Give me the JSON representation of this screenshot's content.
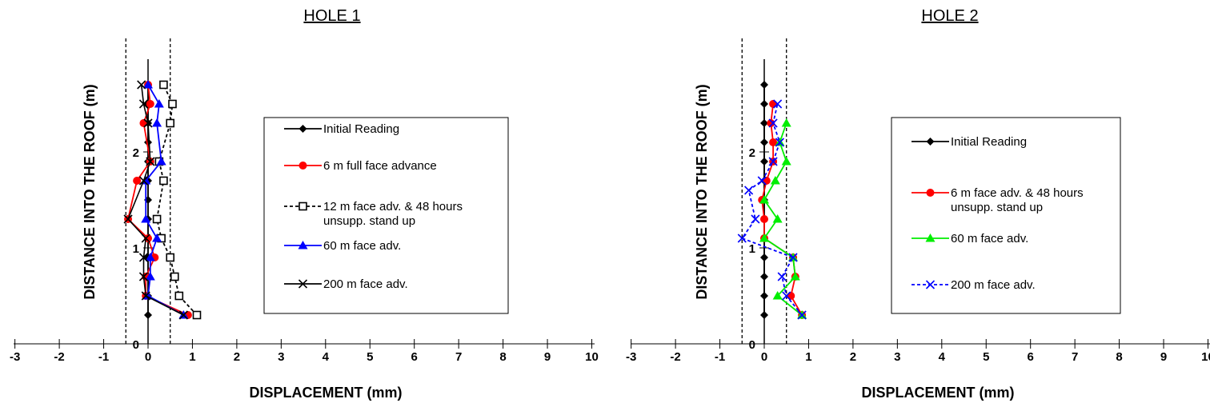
{
  "chart_data": [
    {
      "type": "line",
      "title": "HOLE 1",
      "xlabel": "DISPLACEMENT (mm)",
      "ylabel": "DISTANCE INTO THE ROOF (m)",
      "xlim": [
        -3,
        10
      ],
      "ylim": [
        0,
        2.8
      ],
      "x_ticks": [
        "-3",
        "-2",
        "-1",
        "0",
        "1",
        "2",
        "3",
        "4",
        "5",
        "6",
        "7",
        "8",
        "9",
        "10"
      ],
      "y_ticks": [
        "0",
        "1",
        "2"
      ],
      "reference_lines_x": [
        -0.5,
        0.5
      ],
      "legend_placement": "right",
      "series": [
        {
          "name": "Initial Reading",
          "color": "#000000",
          "marker": "diamond",
          "dash": "solid",
          "points": [
            [
              0,
              0.3
            ],
            [
              0,
              0.5
            ],
            [
              0,
              0.7
            ],
            [
              0,
              0.9
            ],
            [
              0,
              1.1
            ],
            [
              0,
              1.3
            ],
            [
              0,
              1.5
            ],
            [
              0,
              1.7
            ],
            [
              0,
              1.9
            ],
            [
              0,
              2.1
            ],
            [
              0,
              2.3
            ],
            [
              0,
              2.5
            ],
            [
              0,
              2.7
            ]
          ]
        },
        {
          "name": "6 m full face advance",
          "color": "#ff0000",
          "marker": "circle",
          "dash": "solid",
          "points": [
            [
              0.9,
              0.3
            ],
            [
              -0.05,
              0.5
            ],
            [
              -0.05,
              0.7
            ],
            [
              0.15,
              0.9
            ],
            [
              0,
              1.1
            ],
            [
              -0.45,
              1.3
            ],
            [
              -0.25,
              1.7
            ],
            [
              0.05,
              1.9
            ],
            [
              -0.1,
              2.3
            ],
            [
              0.05,
              2.5
            ],
            [
              0,
              2.7
            ]
          ]
        },
        {
          "name": "12 m face adv. & 48 hours unsupp. stand up",
          "color": "#000000",
          "marker": "square-open",
          "dash": "dashed",
          "points": [
            [
              1.1,
              0.3
            ],
            [
              0.7,
              0.5
            ],
            [
              0.6,
              0.7
            ],
            [
              0.5,
              0.9
            ],
            [
              0.3,
              1.1
            ],
            [
              0.2,
              1.3
            ],
            [
              0.35,
              1.7
            ],
            [
              0.25,
              1.9
            ],
            [
              0.5,
              2.3
            ],
            [
              0.55,
              2.5
            ],
            [
              0.35,
              2.7
            ]
          ]
        },
        {
          "name": "60 m face adv.",
          "color": "#0000ff",
          "marker": "triangle",
          "dash": "solid",
          "points": [
            [
              0.8,
              0.3
            ],
            [
              0,
              0.5
            ],
            [
              0.05,
              0.7
            ],
            [
              0.05,
              0.9
            ],
            [
              0.2,
              1.1
            ],
            [
              -0.05,
              1.3
            ],
            [
              -0.05,
              1.7
            ],
            [
              0.3,
              1.9
            ],
            [
              0.2,
              2.3
            ],
            [
              0.25,
              2.5
            ],
            [
              0,
              2.7
            ]
          ]
        },
        {
          "name": "200 m face adv.",
          "color": "#000000",
          "marker": "x",
          "dash": "solid",
          "points": [
            [
              0.8,
              0.3
            ],
            [
              -0.05,
              0.5
            ],
            [
              -0.1,
              0.7
            ],
            [
              -0.1,
              0.9
            ],
            [
              -0.05,
              1.1
            ],
            [
              -0.45,
              1.3
            ],
            [
              -0.1,
              1.7
            ],
            [
              0.05,
              1.9
            ],
            [
              0,
              2.3
            ],
            [
              -0.1,
              2.5
            ],
            [
              -0.15,
              2.7
            ]
          ]
        }
      ]
    },
    {
      "type": "line",
      "title": "HOLE 2",
      "xlabel": "DISPLACEMENT (mm)",
      "ylabel": "DISTANCE INTO THE ROOF (m)",
      "xlim": [
        -3,
        10
      ],
      "ylim": [
        0,
        2.8
      ],
      "x_ticks": [
        "-3",
        "-2",
        "-1",
        "0",
        "1",
        "2",
        "3",
        "4",
        "5",
        "6",
        "7",
        "8",
        "9",
        "10"
      ],
      "y_ticks": [
        "0",
        "1",
        "2"
      ],
      "reference_lines_x": [
        -0.5,
        0.5
      ],
      "legend_placement": "right",
      "series": [
        {
          "name": "Initial Reading",
          "color": "#000000",
          "marker": "diamond",
          "dash": "solid",
          "points": [
            [
              0,
              0.3
            ],
            [
              0,
              0.5
            ],
            [
              0,
              0.7
            ],
            [
              0,
              0.9
            ],
            [
              0,
              1.1
            ],
            [
              0,
              1.3
            ],
            [
              0,
              1.5
            ],
            [
              0,
              1.7
            ],
            [
              0,
              1.9
            ],
            [
              0,
              2.1
            ],
            [
              0,
              2.3
            ],
            [
              0,
              2.5
            ],
            [
              0,
              2.7
            ]
          ]
        },
        {
          "name": "6 m face adv. & 48 hours unsupp. stand up",
          "color": "#ff0000",
          "marker": "circle",
          "dash": "solid",
          "points": [
            [
              0.85,
              0.3
            ],
            [
              0.6,
              0.5
            ],
            [
              0.7,
              0.7
            ],
            [
              0.65,
              0.9
            ],
            [
              0,
              1.1
            ],
            [
              0,
              1.3
            ],
            [
              -0.05,
              1.5
            ],
            [
              0.05,
              1.7
            ],
            [
              0.2,
              1.9
            ],
            [
              0.2,
              2.1
            ],
            [
              0.15,
              2.3
            ],
            [
              0.2,
              2.5
            ]
          ]
        },
        {
          "name": "60 m face adv.",
          "color": "#00ee00",
          "marker": "triangle",
          "dash": "solid",
          "points": [
            [
              0.85,
              0.3
            ],
            [
              0.3,
              0.5
            ],
            [
              0.7,
              0.7
            ],
            [
              0.65,
              0.9
            ],
            [
              0,
              1.1
            ],
            [
              0.3,
              1.3
            ],
            [
              0,
              1.5
            ],
            [
              0.25,
              1.7
            ],
            [
              0.5,
              1.9
            ],
            [
              0.35,
              2.1
            ],
            [
              0.5,
              2.3
            ]
          ]
        },
        {
          "name": "200 m face adv.",
          "color": "#0000ff",
          "marker": "x",
          "dash": "dashed",
          "points": [
            [
              0.85,
              0.3
            ],
            [
              0.5,
              0.5
            ],
            [
              0.4,
              0.7
            ],
            [
              0.65,
              0.9
            ],
            [
              -0.5,
              1.1
            ],
            [
              -0.2,
              1.3
            ],
            [
              -0.35,
              1.6
            ],
            [
              -0.05,
              1.7
            ],
            [
              0.2,
              1.9
            ],
            [
              0.35,
              2.1
            ],
            [
              0.2,
              2.3
            ],
            [
              0.3,
              2.5
            ]
          ]
        }
      ]
    }
  ]
}
